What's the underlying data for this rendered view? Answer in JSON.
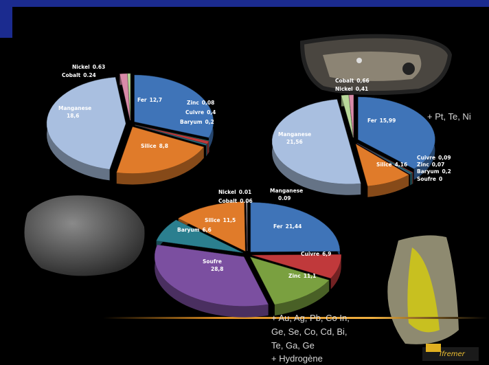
{
  "chart_data": [
    {
      "type": "pie",
      "categories": [
        "Fer",
        "Zinc",
        "Cuivre",
        "Baryum",
        "Silice",
        "Manganese",
        "Nickel",
        "Cobalt"
      ],
      "values": [
        12.7,
        0.08,
        0.4,
        0.2,
        8.8,
        18.6,
        0.63,
        0.24
      ],
      "value_labels": [
        "12,7",
        "0,08",
        "0,4",
        "0,2",
        "8,8",
        "18,6",
        "0.63",
        "0.24"
      ],
      "colors": [
        "#3f74b8",
        "#2f8f8a",
        "#c0393b",
        "#2b6f7f",
        "#e07b2a",
        "#a9bfe0",
        "#d98aa8",
        "#b8d89a"
      ]
    },
    {
      "type": "pie",
      "categories": [
        "Fer",
        "Cuivre",
        "Zinc",
        "Baryum",
        "Soufre",
        "Silice",
        "Manganese",
        "Cobalt",
        "Nickel"
      ],
      "values": [
        15.99,
        0.09,
        0.07,
        0.2,
        0,
        4.16,
        21.56,
        0.66,
        0.41
      ],
      "value_labels": [
        "15,99",
        "0,09",
        "0,07",
        "0,2",
        "0",
        "4,16",
        "21,56",
        "0,66",
        "0,41"
      ],
      "colors": [
        "#3f74b8",
        "#c0393b",
        "#2f8f8a",
        "#2b6f7f",
        "#7b4fa0",
        "#e07b2a",
        "#a9bfe0",
        "#b8d89a",
        "#d98aa8"
      ],
      "annotations": [
        "+ Pt, Te, Ni"
      ]
    },
    {
      "type": "pie",
      "categories": [
        "Fer",
        "Cuivre",
        "Zinc",
        "Soufre",
        "Baryum",
        "Silice",
        "Nickel",
        "Cobalt",
        "Manganese"
      ],
      "values": [
        21.44,
        6.9,
        11.1,
        28.8,
        6.6,
        11.5,
        0.01,
        0.06,
        0.09
      ],
      "value_labels": [
        "21,44",
        "6,9",
        "11,1",
        "28,8",
        "6,6",
        "11,5",
        "0.01",
        "0.06",
        "0.09"
      ],
      "colors": [
        "#3f74b8",
        "#c0393b",
        "#7aa040",
        "#7b4fa0",
        "#2b7f8f",
        "#e07b2a",
        "#d98aa8",
        "#b8d89a",
        "#a9bfe0"
      ],
      "annotations": [
        "+ Au, Ag, Pb, Co In,",
        "Ge, Se, Co, Cd, Bi,",
        "Te, Ga, Ge",
        "+ Hydrogène"
      ]
    }
  ],
  "logo": "Ifremer"
}
